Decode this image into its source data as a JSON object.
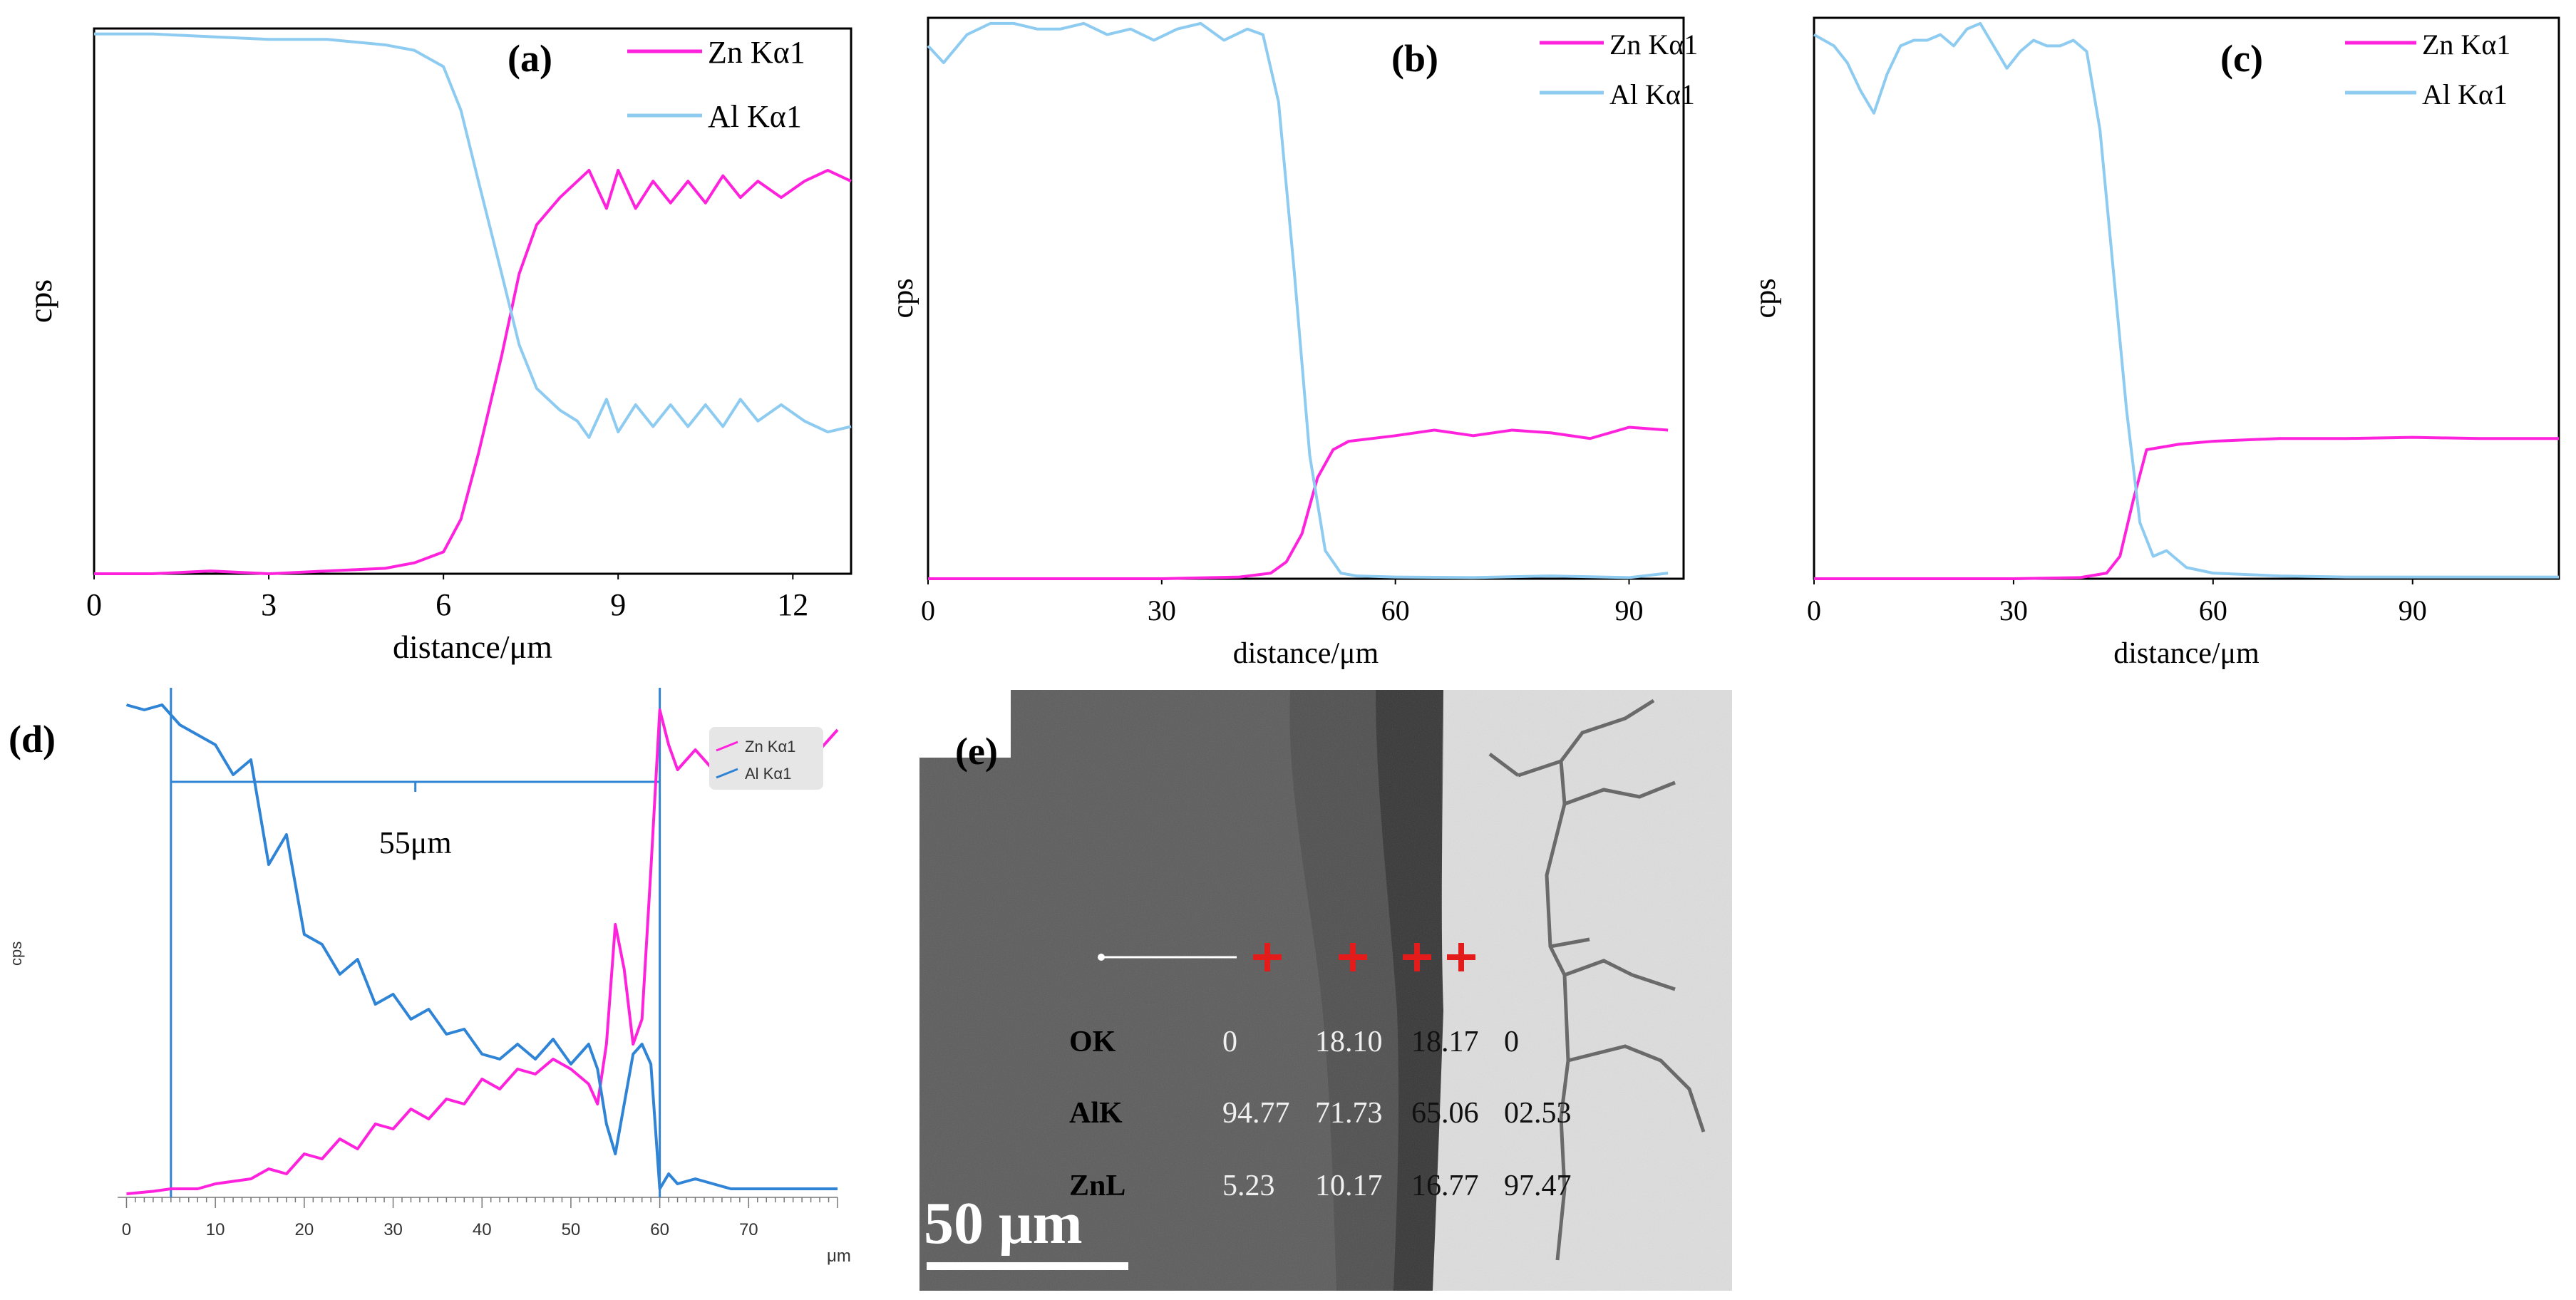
{
  "colors": {
    "zn": "#ff22dd",
    "al_light": "#8ecbf1",
    "al_blue": "#2f84d6",
    "axis": "#000000",
    "marker": "#e41b1b"
  },
  "panel_a": {
    "label": "(a)",
    "chart_data": {
      "type": "line",
      "title": "(a)",
      "xlabel": "distance/μm",
      "ylabel": "cps",
      "xlim": [
        0,
        13
      ],
      "ylim": [
        0,
        100
      ],
      "xticks": [
        "0",
        "3",
        "6",
        "9",
        "12"
      ],
      "series": [
        {
          "name": "Zn Kα1",
          "x": [
            0,
            1,
            2,
            3,
            4,
            5,
            5.5,
            6,
            6.3,
            6.6,
            7,
            7.3,
            7.6,
            8,
            8.3,
            8.5,
            8.8,
            9,
            9.3,
            9.6,
            9.9,
            10.2,
            10.5,
            10.8,
            11.1,
            11.4,
            11.8,
            12.2,
            12.6,
            13
          ],
          "y": [
            0,
            0,
            0.5,
            0,
            0.5,
            1,
            2,
            4,
            10,
            22,
            40,
            55,
            64,
            69,
            72,
            74,
            67,
            74,
            67,
            72,
            68,
            72,
            68,
            73,
            69,
            72,
            69,
            72,
            74,
            72
          ]
        },
        {
          "name": "Al Kα1",
          "x": [
            0,
            1,
            2,
            3,
            4,
            5,
            5.5,
            6,
            6.3,
            6.6,
            7,
            7.3,
            7.6,
            8,
            8.3,
            8.5,
            8.8,
            9,
            9.3,
            9.6,
            9.9,
            10.2,
            10.5,
            10.8,
            11.1,
            11.4,
            11.8,
            12.2,
            12.6,
            13
          ],
          "y": [
            99,
            99,
            98.5,
            98,
            98,
            97,
            96,
            93,
            85,
            72,
            55,
            42,
            34,
            30,
            28,
            25,
            32,
            26,
            31,
            27,
            31,
            27,
            31,
            27,
            32,
            28,
            31,
            28,
            26,
            27
          ]
        }
      ]
    }
  },
  "panel_b": {
    "label": "(b)",
    "chart_data": {
      "type": "line",
      "title": "(b)",
      "xlabel": "distance/μm",
      "ylabel": "cps",
      "xlim": [
        0,
        97
      ],
      "ylim": [
        0,
        100
      ],
      "xticks": [
        "0",
        "30",
        "60",
        "90"
      ],
      "series": [
        {
          "name": "Zn Kα1",
          "x": [
            0,
            10,
            20,
            30,
            40,
            44,
            46,
            48,
            50,
            52,
            54,
            60,
            65,
            70,
            75,
            80,
            85,
            90,
            95
          ],
          "y": [
            0,
            0,
            0,
            0,
            0.3,
            1,
            3,
            8,
            18,
            23,
            24.5,
            25.5,
            26.5,
            25.5,
            26.5,
            26,
            25,
            27,
            26.5
          ]
        },
        {
          "name": "Al Kα1",
          "x": [
            0,
            2,
            5,
            8,
            11,
            14,
            17,
            20,
            23,
            26,
            29,
            32,
            35,
            38,
            41,
            43,
            45,
            47,
            49,
            51,
            53,
            55,
            60,
            70,
            80,
            90,
            95
          ],
          "y": [
            95,
            92,
            97,
            99,
            99,
            98,
            98,
            99,
            97,
            98,
            96,
            98,
            99,
            96,
            98,
            97,
            85,
            55,
            22,
            5,
            1,
            0.5,
            0.3,
            0.2,
            0.5,
            0.2,
            1
          ]
        }
      ]
    }
  },
  "panel_c": {
    "label": "(c)",
    "chart_data": {
      "type": "line",
      "title": "(c)",
      "xlabel": "distance/μm",
      "ylabel": "cps",
      "xlim": [
        0,
        112
      ],
      "ylim": [
        0,
        100
      ],
      "xticks": [
        "0",
        "30",
        "60",
        "90"
      ],
      "series": [
        {
          "name": "Zn Kα1",
          "x": [
            0,
            10,
            20,
            30,
            40,
            44,
            46,
            48,
            50,
            55,
            60,
            70,
            80,
            90,
            100,
            112
          ],
          "y": [
            0,
            0,
            0,
            0,
            0.2,
            1,
            4,
            14,
            23,
            24,
            24.5,
            25,
            25,
            25.2,
            25,
            25
          ]
        },
        {
          "name": "Al Kα1",
          "x": [
            0,
            3,
            5,
            7,
            9,
            11,
            13,
            15,
            17,
            19,
            21,
            23,
            25,
            27,
            29,
            31,
            33,
            35,
            37,
            39,
            41,
            43,
            45,
            47,
            49,
            51,
            53,
            56,
            60,
            70,
            80,
            100,
            112
          ],
          "y": [
            97,
            95,
            92,
            87,
            83,
            90,
            95,
            96,
            96,
            97,
            95,
            98,
            99,
            95,
            91,
            94,
            96,
            95,
            95,
            96,
            94,
            80,
            55,
            30,
            10,
            4,
            5,
            2,
            1,
            0.5,
            0.3,
            0.3,
            0.3
          ]
        }
      ]
    }
  },
  "panel_d": {
    "label": "(d)",
    "annotation": "55μm",
    "unit": "μm",
    "chart_data": {
      "type": "line",
      "title": "(d)",
      "xlabel": "μm",
      "ylabel": "cps",
      "xlim": [
        -1,
        80
      ],
      "ylim": [
        0,
        100
      ],
      "xticks": [
        "0",
        "10",
        "20",
        "30",
        "40",
        "50",
        "60",
        "70"
      ],
      "markers_x": [
        5,
        60
      ],
      "series": [
        {
          "name": "Zn Kα1",
          "x": [
            0,
            3,
            5,
            8,
            10,
            12,
            14,
            16,
            18,
            20,
            22,
            24,
            26,
            28,
            30,
            32,
            34,
            36,
            38,
            40,
            42,
            44,
            46,
            48,
            50,
            52,
            53,
            54,
            55,
            56,
            57,
            58,
            59,
            60,
            61,
            62,
            64,
            66,
            68,
            70,
            72,
            74,
            76,
            78,
            80
          ],
          "y": [
            0,
            0.5,
            1,
            1,
            2,
            2.5,
            3,
            5,
            4,
            8,
            7,
            11,
            9,
            14,
            13,
            17,
            15,
            19,
            18,
            23,
            21,
            25,
            24,
            27,
            25,
            22,
            18,
            30,
            54,
            45,
            30,
            35,
            65,
            97,
            90,
            85,
            89,
            85,
            91,
            87,
            92,
            88,
            92,
            89,
            93
          ]
        },
        {
          "name": "Al Kα1",
          "x": [
            0,
            2,
            4,
            6,
            8,
            10,
            12,
            14,
            16,
            18,
            20,
            22,
            24,
            26,
            28,
            30,
            32,
            34,
            36,
            38,
            40,
            42,
            44,
            46,
            48,
            50,
            52,
            53,
            54,
            55,
            56,
            57,
            58,
            59,
            60,
            61,
            62,
            64,
            66,
            68,
            70,
            72,
            74,
            76,
            78,
            80
          ],
          "y": [
            98,
            97,
            98,
            94,
            92,
            90,
            84,
            87,
            66,
            72,
            52,
            50,
            44,
            47,
            38,
            40,
            35,
            37,
            32,
            33,
            28,
            27,
            30,
            27,
            31,
            26,
            30,
            25,
            14,
            8,
            18,
            28,
            30,
            26,
            1,
            4,
            2,
            3,
            2,
            1,
            1,
            1,
            1,
            1,
            1,
            1
          ]
        }
      ]
    }
  },
  "panel_e": {
    "label": "(e)",
    "scale_bar": "50 μm",
    "rows": [
      {
        "name": "OK",
        "values": [
          "0",
          "18.10",
          "18.17",
          "0"
        ]
      },
      {
        "name": "AlK",
        "values": [
          "94.77",
          "71.73",
          "65.06",
          "02.53"
        ]
      },
      {
        "name": "ZnL",
        "values": [
          "5.23",
          "10.17",
          "16.77",
          "97.47"
        ]
      }
    ]
  }
}
